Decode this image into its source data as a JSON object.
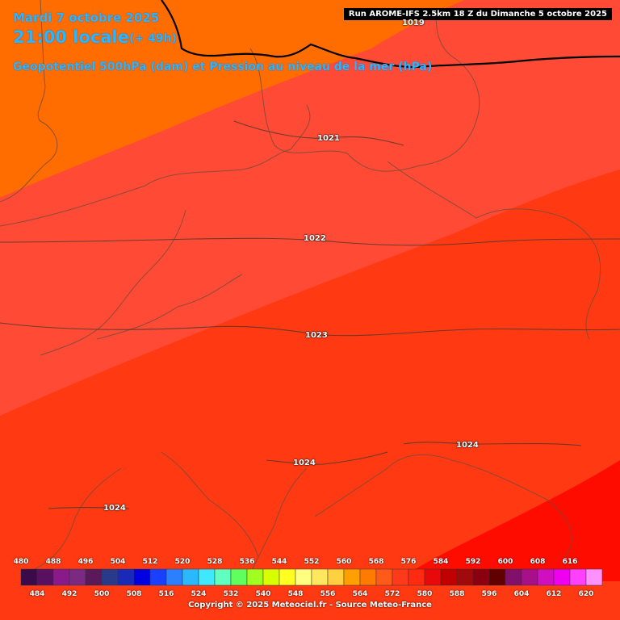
{
  "header": {
    "date": "Mardi 7 octobre 2025",
    "time": "21:00 locale",
    "lead": "(+ 49h)",
    "description": "Geopotentiel 500hPa (dam) et Pression au niveau de la mer (hPa)"
  },
  "run_info": "Run AROME-IFS 2.5km 18 Z du Dimanche 5 octobre 2025",
  "isobars": [
    {
      "label": "1019"
    },
    {
      "label": "1021"
    },
    {
      "label": "1022"
    },
    {
      "label": "1023"
    },
    {
      "label": "1024"
    },
    {
      "label": "1024"
    },
    {
      "label": "1024"
    }
  ],
  "legend": {
    "top_labels": [
      "480",
      "488",
      "496",
      "504",
      "512",
      "520",
      "528",
      "536",
      "544",
      "552",
      "560",
      "568",
      "576",
      "584",
      "592",
      "600",
      "608",
      "616"
    ],
    "bottom_labels": [
      "484",
      "492",
      "500",
      "508",
      "516",
      "524",
      "532",
      "540",
      "548",
      "556",
      "564",
      "572",
      "580",
      "588",
      "596",
      "604",
      "612",
      "620"
    ],
    "colors": [
      "#3a0a4a",
      "#5a1060",
      "#8a1a8a",
      "#7a2a80",
      "#5a1a5a",
      "#2a3a8a",
      "#1a2ab8",
      "#0000e0",
      "#1a40ff",
      "#2a80ff",
      "#2ab8ff",
      "#40e8ff",
      "#60ffc0",
      "#60ff60",
      "#a0ff20",
      "#d8ff00",
      "#ffff20",
      "#ffff80",
      "#ffe860",
      "#ffd040",
      "#ffa000",
      "#ff7a00",
      "#ff5a1a",
      "#ff3a1a",
      "#ff2a10",
      "#e80a0a",
      "#c00000",
      "#a00a0a",
      "#8a0010",
      "#600000",
      "#80106a",
      "#a8108a",
      "#d010c0",
      "#f000f0",
      "#ff40ff",
      "#ff90ff"
    ]
  },
  "copyright": "Copyright © 2025 Meteociel.fr - Source Meteo-France",
  "colors": {
    "band_568": "#ff6c00",
    "band_572": "#ff5038",
    "band_576": "#ff3c10",
    "band_580": "#ff2200",
    "band_584": "#ff0800",
    "title_blue": "#29b6ff"
  }
}
